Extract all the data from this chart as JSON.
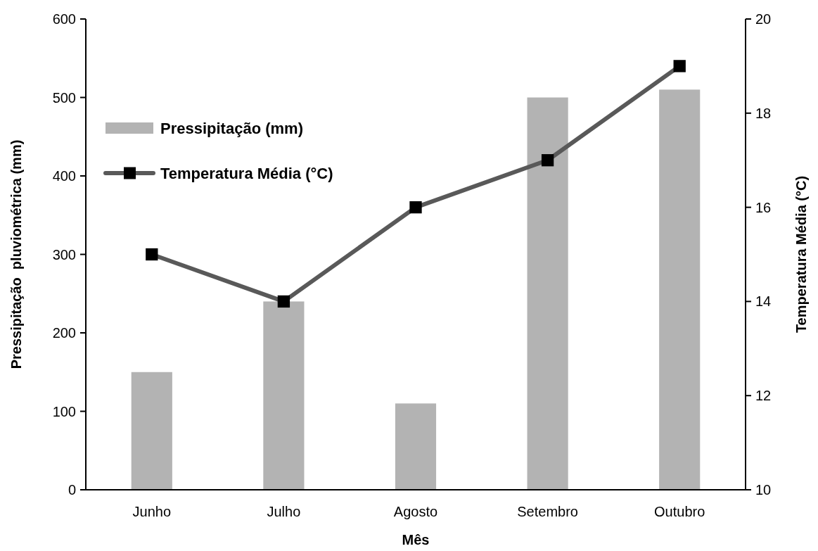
{
  "chart_data": {
    "type": "bar",
    "xlabel": "Mês",
    "ylabel": "Pressipitação  pluviométrica (mm)",
    "y2label": "Temperatura Média (°C)",
    "categories": [
      "Junho",
      "Julho",
      "Agosto",
      "Setembro",
      "Outubro"
    ],
    "series": [
      {
        "name": "Pressipitação (mm)",
        "color": "#b3b3b3",
        "values": [
          150,
          240,
          110,
          500,
          510
        ]
      },
      {
        "name": "Temperatura Média (°C)",
        "type": "line",
        "axis": "y2",
        "color": "#595959",
        "marker": "square",
        "values": [
          15,
          14,
          16,
          17,
          19
        ]
      }
    ],
    "ylim": [
      0,
      600
    ],
    "yticks": [
      0,
      100,
      200,
      300,
      400,
      500,
      600
    ],
    "y2lim": [
      10,
      20
    ],
    "y2ticks": [
      10,
      12,
      14,
      16,
      18,
      20
    ],
    "grid": false,
    "legend": "top left"
  }
}
